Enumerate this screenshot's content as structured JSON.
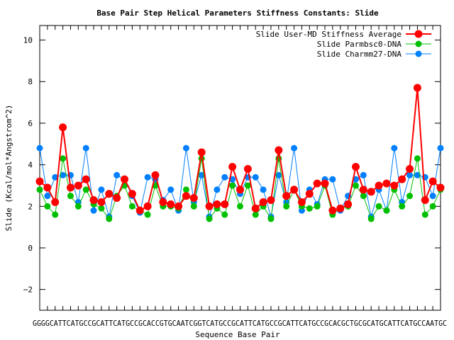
{
  "chart_data": {
    "type": "line",
    "title": "Base Pair Step Helical Parameters Stiffness Constants: Slide",
    "xlabel": "Sequence Base Pair",
    "ylabel": "Slide (Kcal/mol*Angstrom^2)",
    "ylim": [
      -3,
      10.7
    ],
    "yticks": [
      -2,
      0,
      2,
      4,
      6,
      8,
      10
    ],
    "grid": false,
    "legend": "top-right",
    "x_tick_labels_overlapping": "GGGGCATTCATGCCGCATTCATGCCGCACCGTGCAATCGGTCATGCCGCATTCATGCCGCATTCATGCCGCACGCTGCGCATGCATTCATGCCAATGC",
    "series": [
      {
        "name": "Slide User-MD Stiffness Average",
        "color": "#ff0000",
        "values": [
          3.2,
          2.9,
          2.2,
          5.8,
          2.9,
          3.0,
          3.3,
          2.3,
          2.2,
          2.6,
          2.4,
          3.3,
          2.6,
          1.8,
          2.0,
          3.5,
          2.2,
          2.1,
          2.0,
          2.5,
          2.4,
          4.6,
          2.0,
          2.1,
          2.1,
          3.9,
          2.8,
          3.8,
          1.9,
          2.2,
          2.3,
          4.7,
          2.5,
          2.8,
          2.2,
          2.6,
          3.1,
          3.1,
          1.8,
          1.9,
          2.1,
          3.9,
          2.8,
          2.7,
          3.0,
          3.1,
          3.0,
          3.3,
          3.8,
          7.7,
          2.3,
          3.2,
          2.9
        ]
      },
      {
        "name": "Slide Parmbsc0-DNA",
        "color": "#00c000",
        "values": [
          2.8,
          2.0,
          1.6,
          4.3,
          2.5,
          2.0,
          2.8,
          2.1,
          1.9,
          1.4,
          2.5,
          3.0,
          2.0,
          1.8,
          1.6,
          3.0,
          2.0,
          2.0,
          1.9,
          2.8,
          2.0,
          4.3,
          1.4,
          1.9,
          1.6,
          3.0,
          2.0,
          3.0,
          1.6,
          2.0,
          1.4,
          4.3,
          2.0,
          2.8,
          2.0,
          1.9,
          2.0,
          3.0,
          1.6,
          1.9,
          2.0,
          3.0,
          2.5,
          1.4,
          2.0,
          1.8,
          2.8,
          2.0,
          2.5,
          4.3,
          1.6,
          2.0,
          2.8
        ]
      },
      {
        "name": "Slide Charmm27-DNA",
        "color": "#0080ff",
        "values": [
          4.8,
          2.5,
          3.4,
          3.5,
          3.5,
          2.2,
          4.8,
          1.8,
          2.8,
          1.5,
          3.5,
          3.3,
          2.5,
          1.7,
          3.4,
          3.3,
          2.3,
          2.8,
          1.8,
          4.8,
          2.2,
          3.5,
          1.5,
          2.8,
          3.4,
          3.3,
          2.6,
          3.4,
          3.4,
          2.8,
          1.5,
          3.5,
          2.2,
          4.8,
          1.8,
          2.8,
          2.1,
          3.3,
          3.3,
          1.8,
          2.5,
          3.3,
          3.5,
          1.5,
          2.8,
          1.8,
          4.8,
          2.2,
          3.5,
          3.5,
          3.4,
          2.5,
          4.8
        ]
      }
    ]
  }
}
